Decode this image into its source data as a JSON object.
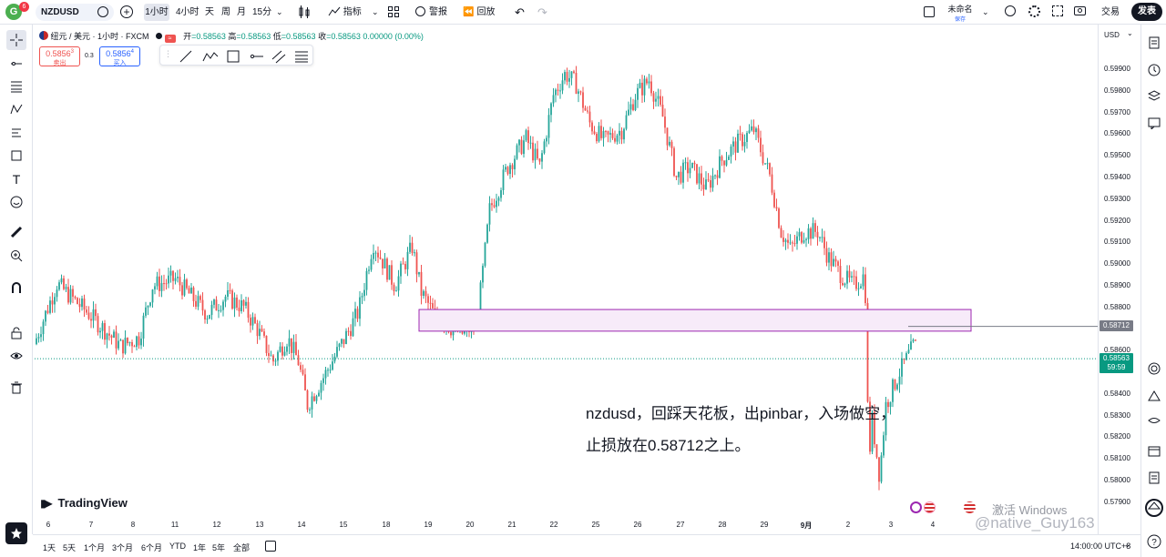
{
  "header": {
    "logo_letter": "G",
    "notif_count": "6",
    "symbol": "NZDUSD",
    "interval": "1小时",
    "intervals": [
      "4小时",
      "天",
      "周",
      "月",
      "15分"
    ],
    "indicators": "指标",
    "alert": "警报",
    "replay": "回放",
    "layout_name": "未命名",
    "layout_status": "保存",
    "trade": "交易",
    "publish": "发表"
  },
  "legend": {
    "title": "纽元 / 美元 · 1小时 · FXCM",
    "open_label": "开",
    "open": "=0.58563",
    "high_label": "高",
    "high": "=0.58563",
    "low_label": "低",
    "low": "=0.58563",
    "close_label": "收",
    "close": "=0.58563 0.00000 (0.00%)",
    "sell_price": "0.5856",
    "sell_sup": "3",
    "sell_label": "卖出",
    "spread": "0.3",
    "buy_price": "0.5856",
    "buy_sup": "4",
    "buy_label": "买入"
  },
  "price_axis": {
    "currency": "USD",
    "labels": [
      "0.59900",
      "0.59800",
      "0.59700",
      "0.59600",
      "0.59500",
      "0.59400",
      "0.59300",
      "0.59200",
      "0.59100",
      "0.59000",
      "0.58900",
      "0.58800",
      "0.58600",
      "0.58400",
      "0.58300",
      "0.58200",
      "0.58100",
      "0.58000",
      "0.57900"
    ],
    "line_price": "0.58712",
    "current_price": "0.58563",
    "countdown": "59:59"
  },
  "time_axis": {
    "labels": [
      "6",
      "7",
      "8",
      "11",
      "12",
      "13",
      "14",
      "15",
      "18",
      "19",
      "20",
      "21",
      "22",
      "25",
      "26",
      "27",
      "28",
      "29",
      "9月",
      "2",
      "3",
      "4"
    ]
  },
  "annotation": {
    "line1": "nzdusd，回踩天花板，出pinbar，入场做空，",
    "line2": "止损放在0.58712之上。"
  },
  "watermark": {
    "brand": "TradingView",
    "activate": "激活 Windows",
    "weibo": "@native_Guy163"
  },
  "bottombar": {
    "ranges": [
      "1天",
      "5天",
      "1个月",
      "3个月",
      "6个月",
      "YTD",
      "1年",
      "5年",
      "全部"
    ],
    "clock": "14:00:00 UTC+8"
  },
  "colors": {
    "up": "#26a69a",
    "down": "#ef5350",
    "accent": "#2962ff",
    "zone_border": "#9c27b0",
    "zone_fill": "#f7ebf9",
    "price_tag": "#089981"
  },
  "chart_data": {
    "type": "candlestick",
    "symbol": "NZDUSD",
    "interval": "1h",
    "y_range": [
      0.5785,
      0.5993
    ],
    "y_ticks": [
      0.599,
      0.598,
      0.597,
      0.596,
      0.595,
      0.594,
      0.593,
      0.592,
      0.591,
      0.59,
      0.589,
      0.588,
      0.586,
      0.584,
      0.583,
      0.582,
      0.581,
      0.58,
      0.579
    ],
    "x_labels": [
      "6",
      "7",
      "8",
      "11",
      "12",
      "13",
      "14",
      "15",
      "18",
      "19",
      "20",
      "21",
      "22",
      "25",
      "26",
      "27",
      "28",
      "29",
      "9月",
      "2",
      "3",
      "4"
    ],
    "path": [
      [
        0,
        0.5863
      ],
      [
        25,
        0.5891
      ],
      [
        60,
        0.5877
      ],
      [
        95,
        0.5862
      ],
      [
        115,
        0.5866
      ],
      [
        130,
        0.589
      ],
      [
        155,
        0.5893
      ],
      [
        190,
        0.5877
      ],
      [
        210,
        0.5885
      ],
      [
        230,
        0.588
      ],
      [
        245,
        0.587
      ],
      [
        262,
        0.5855
      ],
      [
        278,
        0.5866
      ],
      [
        290,
        0.5855
      ],
      [
        300,
        0.5835
      ],
      [
        318,
        0.5848
      ],
      [
        340,
        0.5865
      ],
      [
        356,
        0.5878
      ],
      [
        372,
        0.591
      ],
      [
        384,
        0.59
      ],
      [
        396,
        0.589
      ],
      [
        415,
        0.5908
      ],
      [
        425,
        0.5887
      ],
      [
        440,
        0.5876
      ],
      [
        460,
        0.587
      ],
      [
        470,
        0.5868
      ],
      [
        486,
        0.5872
      ],
      [
        500,
        0.5925
      ],
      [
        520,
        0.5945
      ],
      [
        540,
        0.5958
      ],
      [
        555,
        0.5945
      ],
      [
        570,
        0.5978
      ],
      [
        583,
        0.5988
      ],
      [
        595,
        0.5983
      ],
      [
        610,
        0.5965
      ],
      [
        625,
        0.5957
      ],
      [
        645,
        0.5962
      ],
      [
        660,
        0.5978
      ],
      [
        675,
        0.5985
      ],
      [
        690,
        0.5968
      ],
      [
        705,
        0.594
      ],
      [
        720,
        0.5945
      ],
      [
        738,
        0.5935
      ],
      [
        755,
        0.5948
      ],
      [
        770,
        0.5955
      ],
      [
        790,
        0.5962
      ],
      [
        808,
        0.594
      ],
      [
        820,
        0.5915
      ],
      [
        830,
        0.5907
      ],
      [
        845,
        0.5915
      ],
      [
        860,
        0.5915
      ],
      [
        872,
        0.5903
      ],
      [
        886,
        0.5895
      ],
      [
        899,
        0.589
      ],
      [
        912,
        0.5895
      ],
      [
        914,
        0.586
      ],
      [
        916,
        0.5808
      ],
      [
        920,
        0.5828
      ],
      [
        928,
        0.5802
      ],
      [
        935,
        0.5835
      ],
      [
        950,
        0.585
      ],
      [
        965,
        0.5862
      ]
    ],
    "annotations": [
      {
        "type": "rectangle",
        "label": "resistance zone",
        "y_top": 0.5879,
        "y_bottom": 0.5869
      },
      {
        "type": "horizontal_line",
        "price": 0.58712
      },
      {
        "type": "price_marker",
        "price": 0.58563,
        "countdown": "59:59"
      }
    ]
  }
}
